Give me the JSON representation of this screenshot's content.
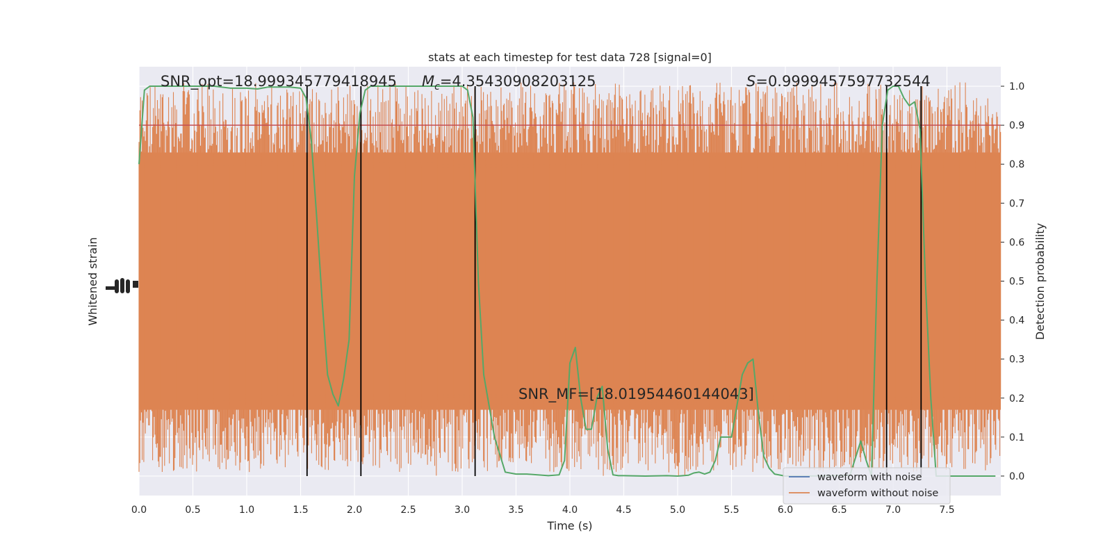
{
  "chart_data": {
    "type": "line",
    "title": "stats at each timestep for test data 728 [signal=0]",
    "xlabel": "Time (s)",
    "ylabel_left": "Whitened strain",
    "ylabel_right": "Detection probability",
    "xlim": [
      0.0,
      8.0
    ],
    "ylim_right": [
      -0.05,
      1.05
    ],
    "x_ticks": [
      "0.0",
      "0.5",
      "1.0",
      "1.5",
      "2.0",
      "2.5",
      "3.0",
      "3.5",
      "4.0",
      "4.5",
      "5.0",
      "5.5",
      "6.0",
      "6.5",
      "7.0",
      "7.5"
    ],
    "y_ticks_right": [
      "0.0",
      "0.1",
      "0.2",
      "0.3",
      "0.4",
      "0.5",
      "0.6",
      "0.7",
      "0.8",
      "0.9",
      "1.0"
    ],
    "grid": true,
    "legend_position": "lower-right",
    "annotations": {
      "snr_opt": "SNR_opt=18.999345779418945",
      "mc_symbol": "M",
      "mc_sub": "c",
      "mc_value": "=4.35430908203125",
      "s_symbol": "S",
      "s_value": "=0.9999457597732544",
      "snr_mf": "SNR_MF=[18.01954460144043]"
    },
    "threshold": 0.9,
    "vertical_lines_x": [
      1.56,
      2.06,
      3.12,
      6.94,
      7.26
    ],
    "series": [
      {
        "name": "waveform with noise",
        "color": "#4c72b0",
        "values": []
      },
      {
        "name": "waveform without noise",
        "color": "#dd8452",
        "band_center": 0.5,
        "band_halfwidth": 0.33,
        "spike_max": 0.97,
        "spike_min": 0.0
      },
      {
        "color": "#55a868",
        "x": [
          0.0,
          0.05,
          0.1,
          0.3,
          0.5,
          0.7,
          0.85,
          1.0,
          1.1,
          1.2,
          1.4,
          1.5,
          1.55,
          1.6,
          1.65,
          1.7,
          1.75,
          1.8,
          1.85,
          1.9,
          1.95,
          2.0,
          2.05,
          2.1,
          2.15,
          2.2,
          2.3,
          2.5,
          2.7,
          2.9,
          3.0,
          3.05,
          3.1,
          3.15,
          3.2,
          3.3,
          3.4,
          3.5,
          3.6,
          3.7,
          3.8,
          3.9,
          3.95,
          4.0,
          4.05,
          4.1,
          4.15,
          4.2,
          4.25,
          4.3,
          4.35,
          4.4,
          4.45,
          4.5,
          4.7,
          4.9,
          5.0,
          5.1,
          5.15,
          5.2,
          5.25,
          5.3,
          5.35,
          5.4,
          5.5,
          5.6,
          5.65,
          5.7,
          5.75,
          5.8,
          5.85,
          5.9,
          6.0,
          6.2,
          6.4,
          6.6,
          6.7,
          6.75,
          6.8,
          6.85,
          6.9,
          6.95,
          7.0,
          7.05,
          7.1,
          7.15,
          7.2,
          7.25,
          7.3,
          7.35,
          7.4,
          7.45,
          7.5,
          7.7,
          7.95
        ],
        "values": [
          0.8,
          0.99,
          1.0,
          1.0,
          1.0,
          1.0,
          0.995,
          0.995,
          0.993,
          0.998,
          0.998,
          0.995,
          0.97,
          0.86,
          0.66,
          0.45,
          0.26,
          0.21,
          0.18,
          0.25,
          0.35,
          0.77,
          0.93,
          0.99,
          1.0,
          1.0,
          1.0,
          1.0,
          1.0,
          1.0,
          1.0,
          0.99,
          0.92,
          0.5,
          0.26,
          0.1,
          0.01,
          0.005,
          0.005,
          0.003,
          0.001,
          0.003,
          0.04,
          0.29,
          0.33,
          0.2,
          0.12,
          0.12,
          0.2,
          0.23,
          0.07,
          0.003,
          0.001,
          0.001,
          0.0,
          0.001,
          0.0,
          0.002,
          0.008,
          0.01,
          0.005,
          0.01,
          0.04,
          0.1,
          0.1,
          0.26,
          0.29,
          0.3,
          0.16,
          0.05,
          0.02,
          0.005,
          0.0,
          0.0,
          0.001,
          0.002,
          0.09,
          0.04,
          0.0,
          0.5,
          0.9,
          0.99,
          1.0,
          1.0,
          0.97,
          0.95,
          0.96,
          0.89,
          0.5,
          0.2,
          0.0,
          0.0,
          0.0,
          0.0,
          0.0
        ]
      }
    ]
  }
}
